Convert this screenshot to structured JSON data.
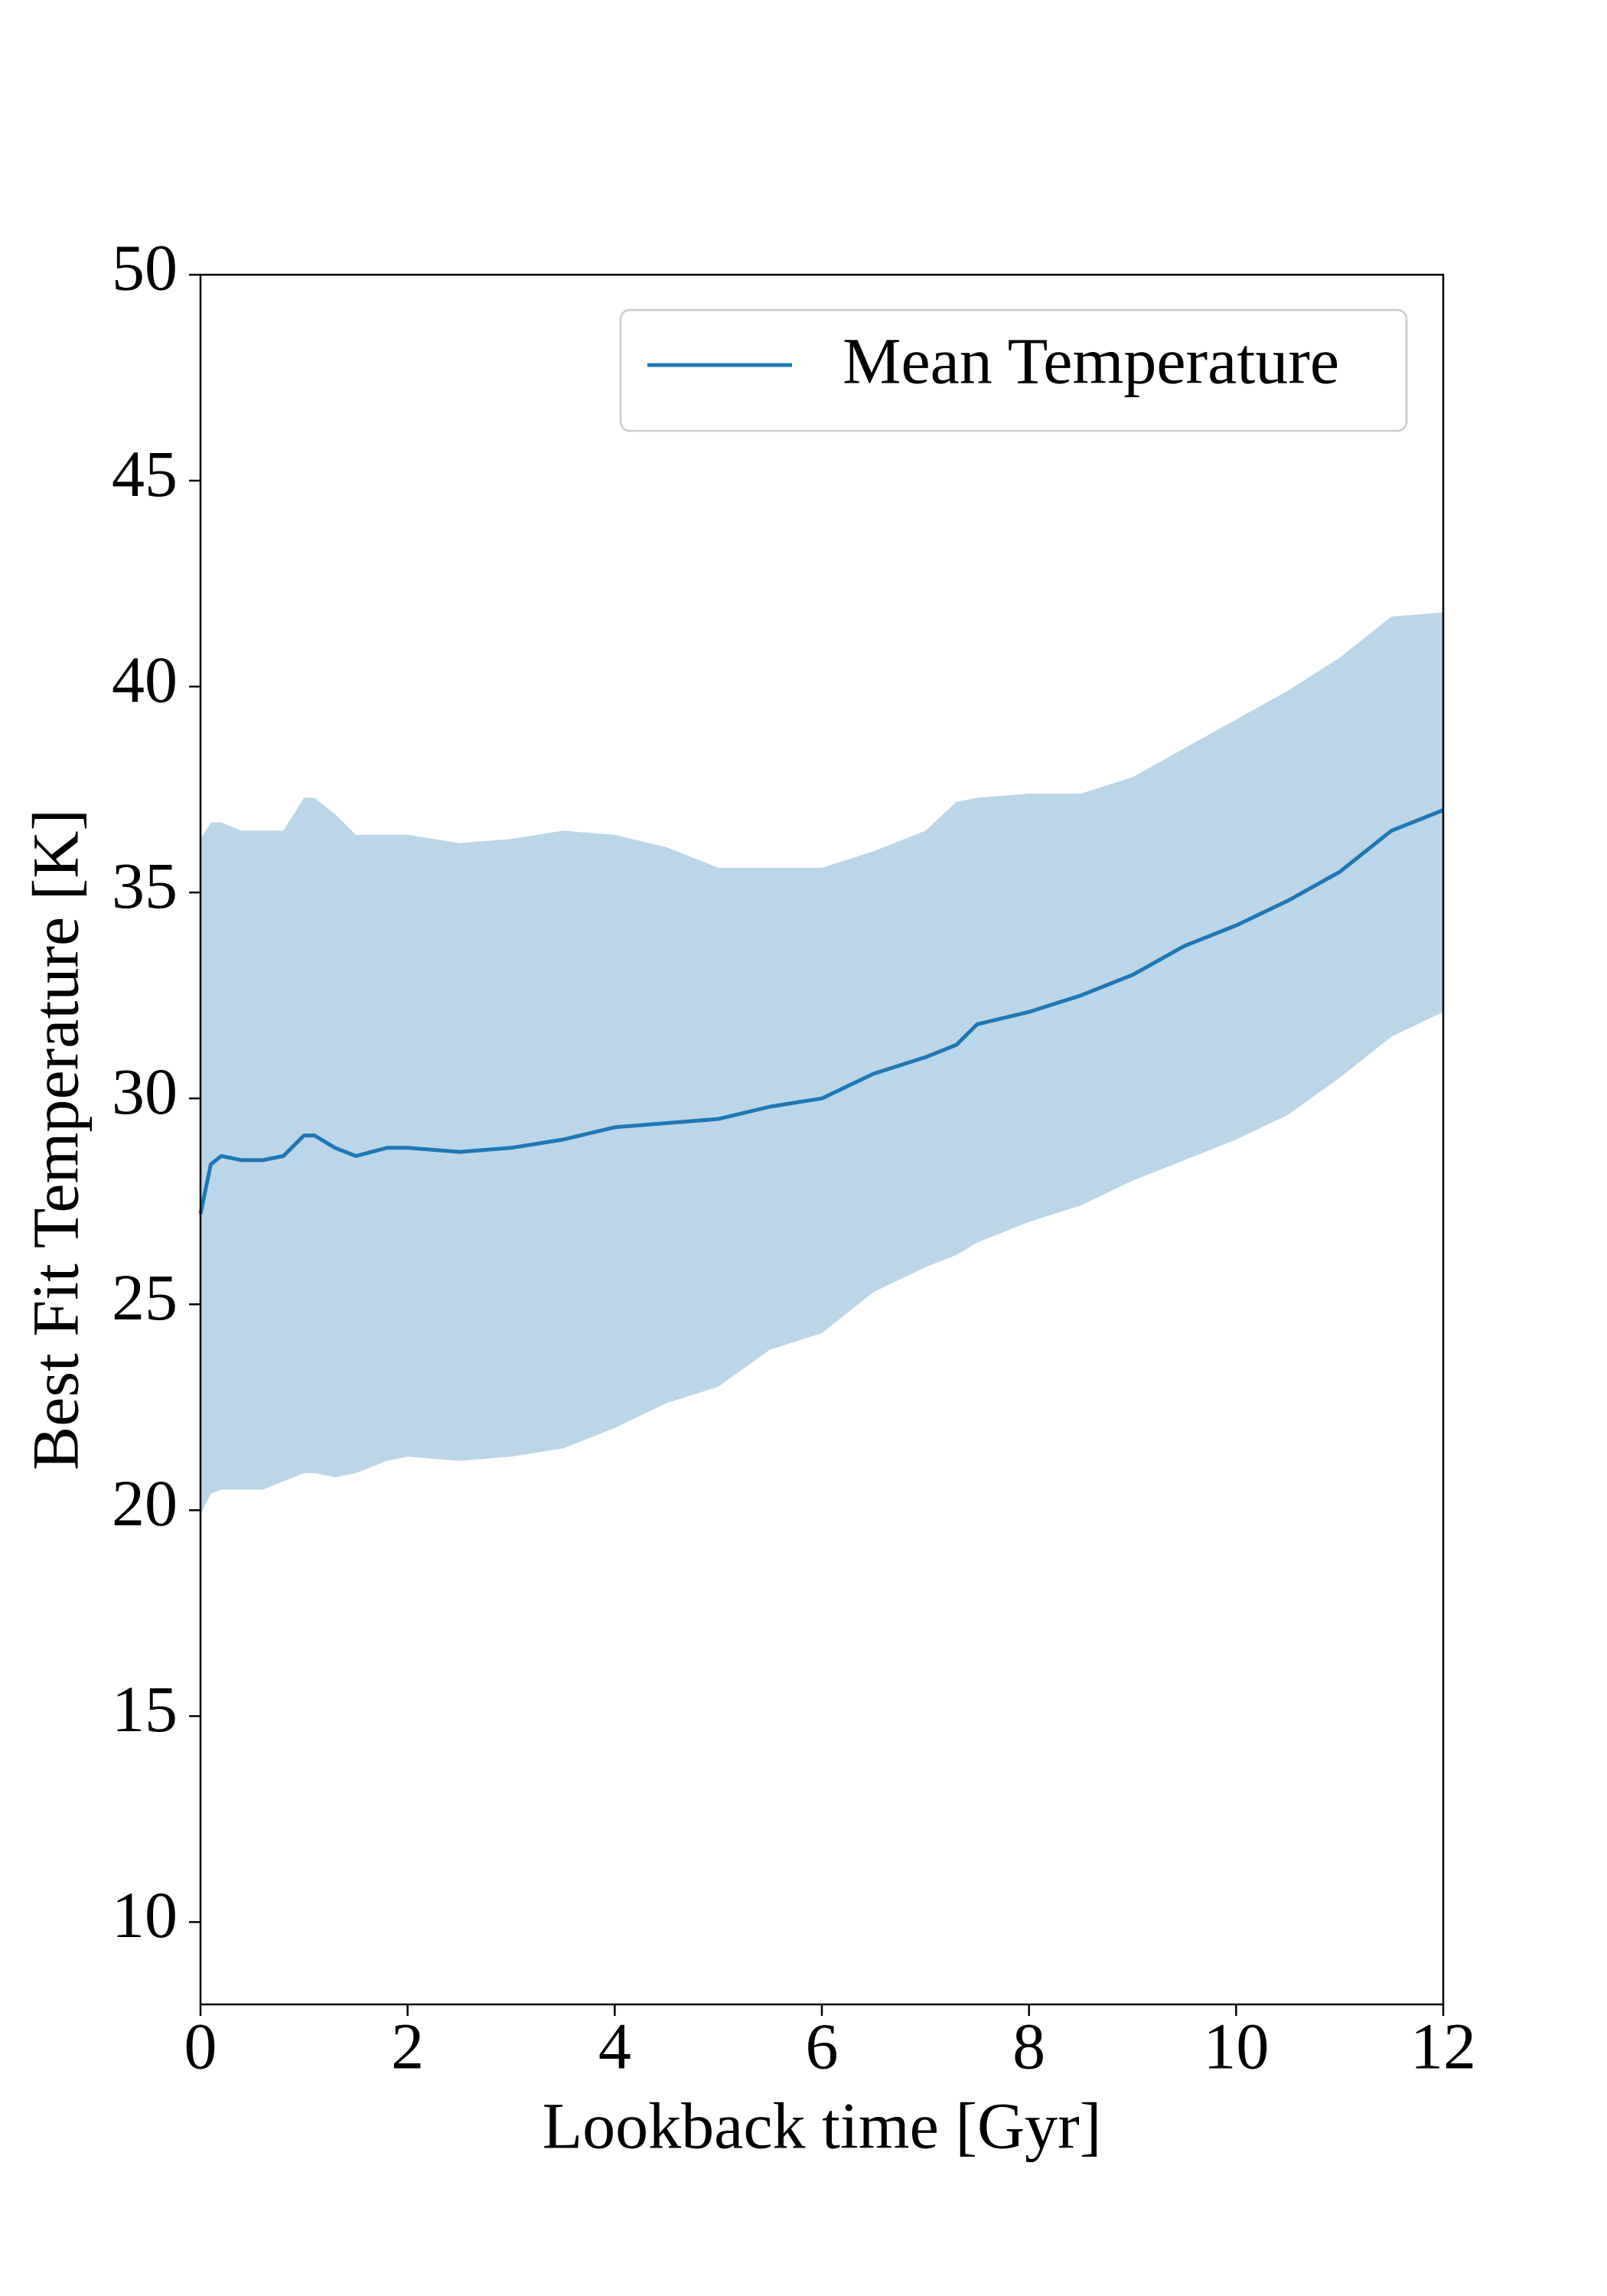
{
  "chart_data": {
    "type": "line",
    "xlabel": "Lookback time [Gyr]",
    "ylabel": "Best Fit Temperature [K]",
    "x": [
      0,
      0.1,
      0.2,
      0.4,
      0.6,
      0.8,
      1.0,
      1.1,
      1.3,
      1.5,
      1.8,
      2.0,
      2.5,
      3.0,
      3.5,
      4.0,
      4.5,
      5.0,
      5.5,
      6.0,
      6.5,
      7.0,
      7.3,
      7.5,
      8.0,
      8.5,
      9.0,
      9.5,
      10.0,
      10.5,
      11.0,
      11.5,
      12.0
    ],
    "series": [
      {
        "name": "Mean Temperature",
        "color": "#1f77b4",
        "values": [
          27.2,
          28.4,
          28.6,
          28.5,
          28.5,
          28.6,
          29.1,
          29.1,
          28.8,
          28.6,
          28.8,
          28.8,
          28.7,
          28.8,
          29.0,
          29.3,
          29.4,
          29.5,
          29.8,
          30.0,
          30.6,
          31.0,
          31.3,
          31.8,
          32.1,
          32.5,
          33.0,
          33.7,
          34.2,
          34.8,
          35.5,
          36.5,
          37.0
        ]
      }
    ],
    "band": {
      "color": "#bbd6e8",
      "upper": [
        36.3,
        36.7,
        36.7,
        36.5,
        36.5,
        36.5,
        37.3,
        37.3,
        36.9,
        36.4,
        36.4,
        36.4,
        36.2,
        36.3,
        36.5,
        36.4,
        36.1,
        35.6,
        35.6,
        35.6,
        36.0,
        36.5,
        37.2,
        37.3,
        37.4,
        37.4,
        37.8,
        38.5,
        39.2,
        39.9,
        40.7,
        41.7,
        41.8
      ],
      "lower": [
        19.9,
        20.4,
        20.5,
        20.5,
        20.5,
        20.7,
        20.9,
        20.9,
        20.8,
        20.9,
        21.2,
        21.3,
        21.2,
        21.3,
        21.5,
        22.0,
        22.6,
        23.0,
        23.9,
        24.3,
        25.3,
        25.9,
        26.2,
        26.5,
        27.0,
        27.4,
        28.0,
        28.5,
        29.0,
        29.6,
        30.5,
        31.5,
        32.1
      ]
    },
    "xlim": [
      0,
      12
    ],
    "xticks": [
      0,
      2,
      4,
      6,
      8,
      10,
      12
    ],
    "ylim": [
      8,
      50
    ],
    "yticks": [
      10,
      15,
      20,
      25,
      30,
      35,
      40,
      45,
      50
    ],
    "grid": false,
    "legend": "upper right"
  }
}
